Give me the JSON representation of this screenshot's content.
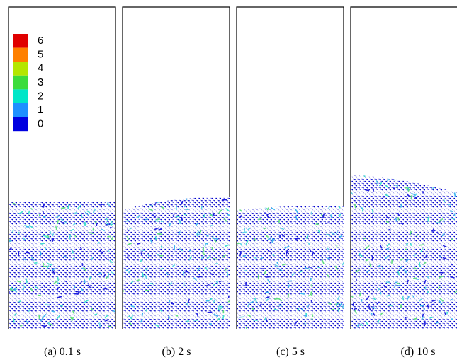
{
  "legend": {
    "levels": [
      {
        "label": "6",
        "color": "#e00000"
      },
      {
        "label": "5",
        "color": "#ff8000"
      },
      {
        "label": "4",
        "color": "#b4e600"
      },
      {
        "label": "3",
        "color": "#3cdc3c"
      },
      {
        "label": "2",
        "color": "#00e6c8"
      },
      {
        "label": "1",
        "color": "#1e90ff"
      },
      {
        "label": "0",
        "color": "#0000e0"
      }
    ]
  },
  "panels": [
    {
      "caption": "(a) 0.1 s"
    },
    {
      "caption": "(b) 2 s"
    },
    {
      "caption": "(c) 5 s"
    },
    {
      "caption": "(d) 10 s"
    }
  ]
}
